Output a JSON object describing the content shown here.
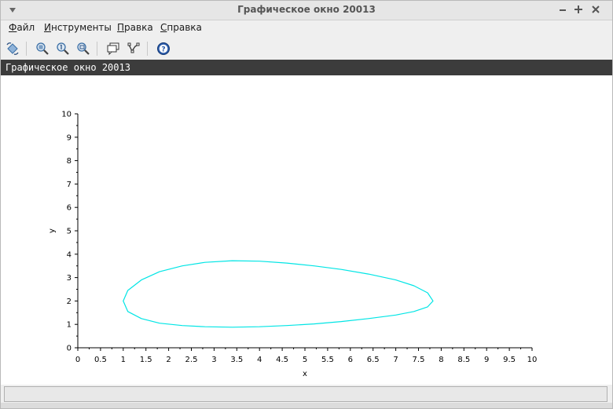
{
  "window": {
    "title": "Графическое окно 20013",
    "menu_icon": "triangle-down-icon",
    "controls": [
      "minimize-icon",
      "maximize-icon",
      "close-icon"
    ]
  },
  "menu": [
    {
      "accel": "Ф",
      "rest": "айл"
    },
    {
      "accel": "И",
      "rest": "нструменты"
    },
    {
      "accel": "П",
      "rest": "равка"
    },
    {
      "accel": "С",
      "rest": "правка"
    }
  ],
  "toolbar": {
    "icons": [
      "rotate-icon",
      "zoom-in-icon",
      "zoom-reset-icon",
      "zoom-area-icon",
      "datatip-icon",
      "datatip-manager-icon",
      "help-icon"
    ]
  },
  "caption": "Графическое окно 20013",
  "colors": {
    "curve": "#00e5e5",
    "caption_bg": "#3c3c3c"
  },
  "chart_data": {
    "type": "line",
    "xlabel": "x",
    "ylabel": "y",
    "xlim": [
      0,
      10
    ],
    "ylim": [
      0,
      10
    ],
    "xticks": [
      "0",
      "0.5",
      "1",
      "1.5",
      "2",
      "2.5",
      "3",
      "3.5",
      "4",
      "4.5",
      "5",
      "5.5",
      "6",
      "6.5",
      "7",
      "7.5",
      "8",
      "8.5",
      "9",
      "9.5",
      "10"
    ],
    "yticks": [
      "0",
      "1",
      "2",
      "3",
      "4",
      "5",
      "6",
      "7",
      "8",
      "9",
      "10"
    ],
    "series": [
      {
        "color": "#00e5e5",
        "closed": true,
        "x": [
          1.0,
          1.1,
          1.4,
          1.8,
          2.3,
          2.8,
          3.4,
          4.0,
          4.6,
          5.2,
          5.8,
          6.4,
          7.0,
          7.4,
          7.7,
          7.82,
          7.7,
          7.4,
          7.0,
          6.4,
          5.8,
          5.2,
          4.6,
          4.0,
          3.4,
          2.8,
          2.3,
          1.8,
          1.4,
          1.1,
          1.0
        ],
        "y": [
          2.0,
          2.45,
          2.9,
          3.25,
          3.5,
          3.65,
          3.72,
          3.7,
          3.62,
          3.5,
          3.35,
          3.15,
          2.9,
          2.65,
          2.35,
          2.0,
          1.75,
          1.55,
          1.4,
          1.25,
          1.12,
          1.02,
          0.95,
          0.9,
          0.88,
          0.9,
          0.95,
          1.05,
          1.25,
          1.55,
          2.0
        ]
      }
    ]
  }
}
